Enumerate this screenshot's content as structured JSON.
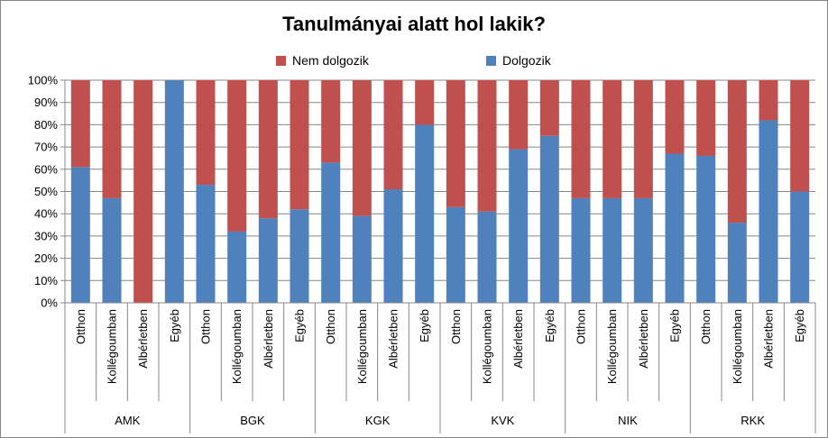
{
  "chart_data": {
    "type": "bar",
    "stacked": true,
    "percent": true,
    "title": "Tanulmányai alatt hol lakik?",
    "yticks": [
      "0%",
      "10%",
      "20%",
      "30%",
      "40%",
      "50%",
      "60%",
      "70%",
      "80%",
      "90%",
      "100%"
    ],
    "ylim": [
      0,
      100
    ],
    "legend_position": "top",
    "groups": [
      "AMK",
      "BGK",
      "KGK",
      "KVK",
      "NIK",
      "RKK"
    ],
    "subcategories": [
      "Otthon",
      "Kollégoumban",
      "Albérletben",
      "Egyéb"
    ],
    "series": [
      {
        "name": "Dolgozik",
        "color": "#4f81bd",
        "values": [
          61,
          47,
          0,
          100,
          53,
          32,
          38,
          42,
          63,
          39,
          51,
          80,
          43,
          41,
          69,
          75,
          47,
          47,
          47,
          67,
          66,
          36,
          82,
          50
        ]
      },
      {
        "name": "Nem dolgozik",
        "color": "#c0504d",
        "values": [
          39,
          53,
          100,
          0,
          47,
          68,
          62,
          58,
          37,
          61,
          49,
          20,
          57,
          59,
          31,
          25,
          53,
          53,
          53,
          33,
          34,
          64,
          18,
          50
        ]
      }
    ],
    "legend": [
      "Nem dolgozik",
      "Dolgozik"
    ],
    "grid": true
  }
}
